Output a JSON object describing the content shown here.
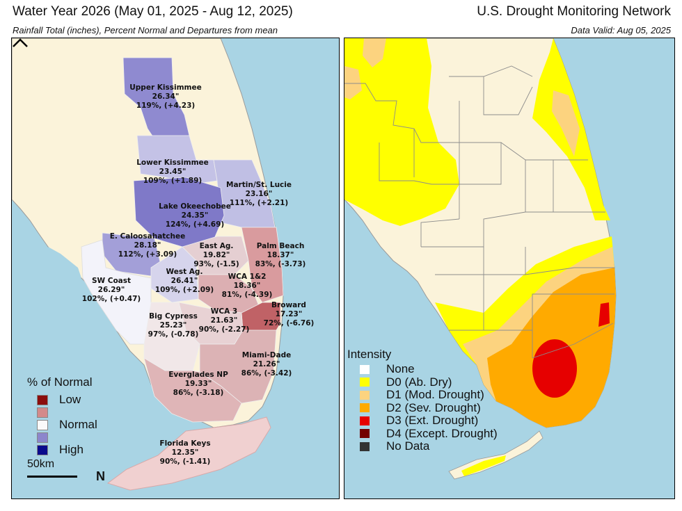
{
  "header": {
    "title_left": "Water Year 2026 (May 01, 2025 - Aug 12, 2025)",
    "subtitle_left": "Rainfall Total (inches), Percent Normal and Departures from mean",
    "title_right": "U.S. Drought Monitoring Network",
    "subtitle_right": "Data Valid: Aug 05, 2025"
  },
  "rainfall_regions": [
    {
      "name": "Upper Kissimmee",
      "total": "26.34\"",
      "pct_dep": "119%, (+4.23)"
    },
    {
      "name": "Lower Kissimmee",
      "total": "23.45\"",
      "pct_dep": "109%, (+1.89)"
    },
    {
      "name": "Martin/St. Lucie",
      "total": "23.16\"",
      "pct_dep": "111%, (+2.21)"
    },
    {
      "name": "Lake Okeechobee",
      "total": "24.35\"",
      "pct_dep": "124%, (+4.69)"
    },
    {
      "name": "E. Caloosahatchee",
      "total": "28.18\"",
      "pct_dep": "112%, (+3.09)"
    },
    {
      "name": "East Ag.",
      "total": "19.82\"",
      "pct_dep": "93%, (-1.5)"
    },
    {
      "name": "Palm Beach",
      "total": "18.37\"",
      "pct_dep": "83%, (-3.73)"
    },
    {
      "name": "West Ag.",
      "total": "26.41\"",
      "pct_dep": "109%, (+2.09)"
    },
    {
      "name": "WCA 1&2",
      "total": "18.36\"",
      "pct_dep": "81%, (-4.39)"
    },
    {
      "name": "SW Coast",
      "total": "26.29\"",
      "pct_dep": "102%, (+0.47)"
    },
    {
      "name": "Broward",
      "total": "17.23\"",
      "pct_dep": "72%, (-6.76)"
    },
    {
      "name": "WCA 3",
      "total": "21.63\"",
      "pct_dep": "90%, (-2.27)"
    },
    {
      "name": "Big Cypress",
      "total": "25.23\"",
      "pct_dep": "97%, (-0.78)"
    },
    {
      "name": "Miami-Dade",
      "total": "21.26\"",
      "pct_dep": "86%, (-3.42)"
    },
    {
      "name": "Everglades NP",
      "total": "19.33\"",
      "pct_dep": "86%, (-3.18)"
    },
    {
      "name": "Florida Keys",
      "total": "12.35\"",
      "pct_dep": "90%, (-1.41)"
    }
  ],
  "legend_left": {
    "title": "% of Normal",
    "items": [
      {
        "label": "Low",
        "color": "#8b0d0d"
      },
      {
        "label": "",
        "color": "#d38a8a"
      },
      {
        "label": "Normal",
        "color": "#fafafa"
      },
      {
        "label": "",
        "color": "#8c86cc"
      },
      {
        "label": "High",
        "color": "#0a0a8c"
      }
    ]
  },
  "scale_label": "50km",
  "north_label": "N",
  "legend_right": {
    "title": "Intensity",
    "items": [
      {
        "code": "None",
        "color": "#ffffff"
      },
      {
        "code": "D0 (Ab. Dry)",
        "color": "#ffff00"
      },
      {
        "code": "D1 (Mod. Drought)",
        "color": "#fcd37f"
      },
      {
        "code": "D2 (Sev. Drought)",
        "color": "#ffaa00"
      },
      {
        "code": "D3 (Ext. Drought)",
        "color": "#e60000"
      },
      {
        "code": "D4 (Except. Drought)",
        "color": "#730000"
      },
      {
        "code": "No Data",
        "color": "#333333"
      }
    ]
  },
  "colors": {
    "water": "#a9d4e4",
    "land": "#fbf3da",
    "d0": "#ffff00",
    "d1": "#fcd37f",
    "d2": "#ffaa00",
    "d3": "#e60000"
  }
}
